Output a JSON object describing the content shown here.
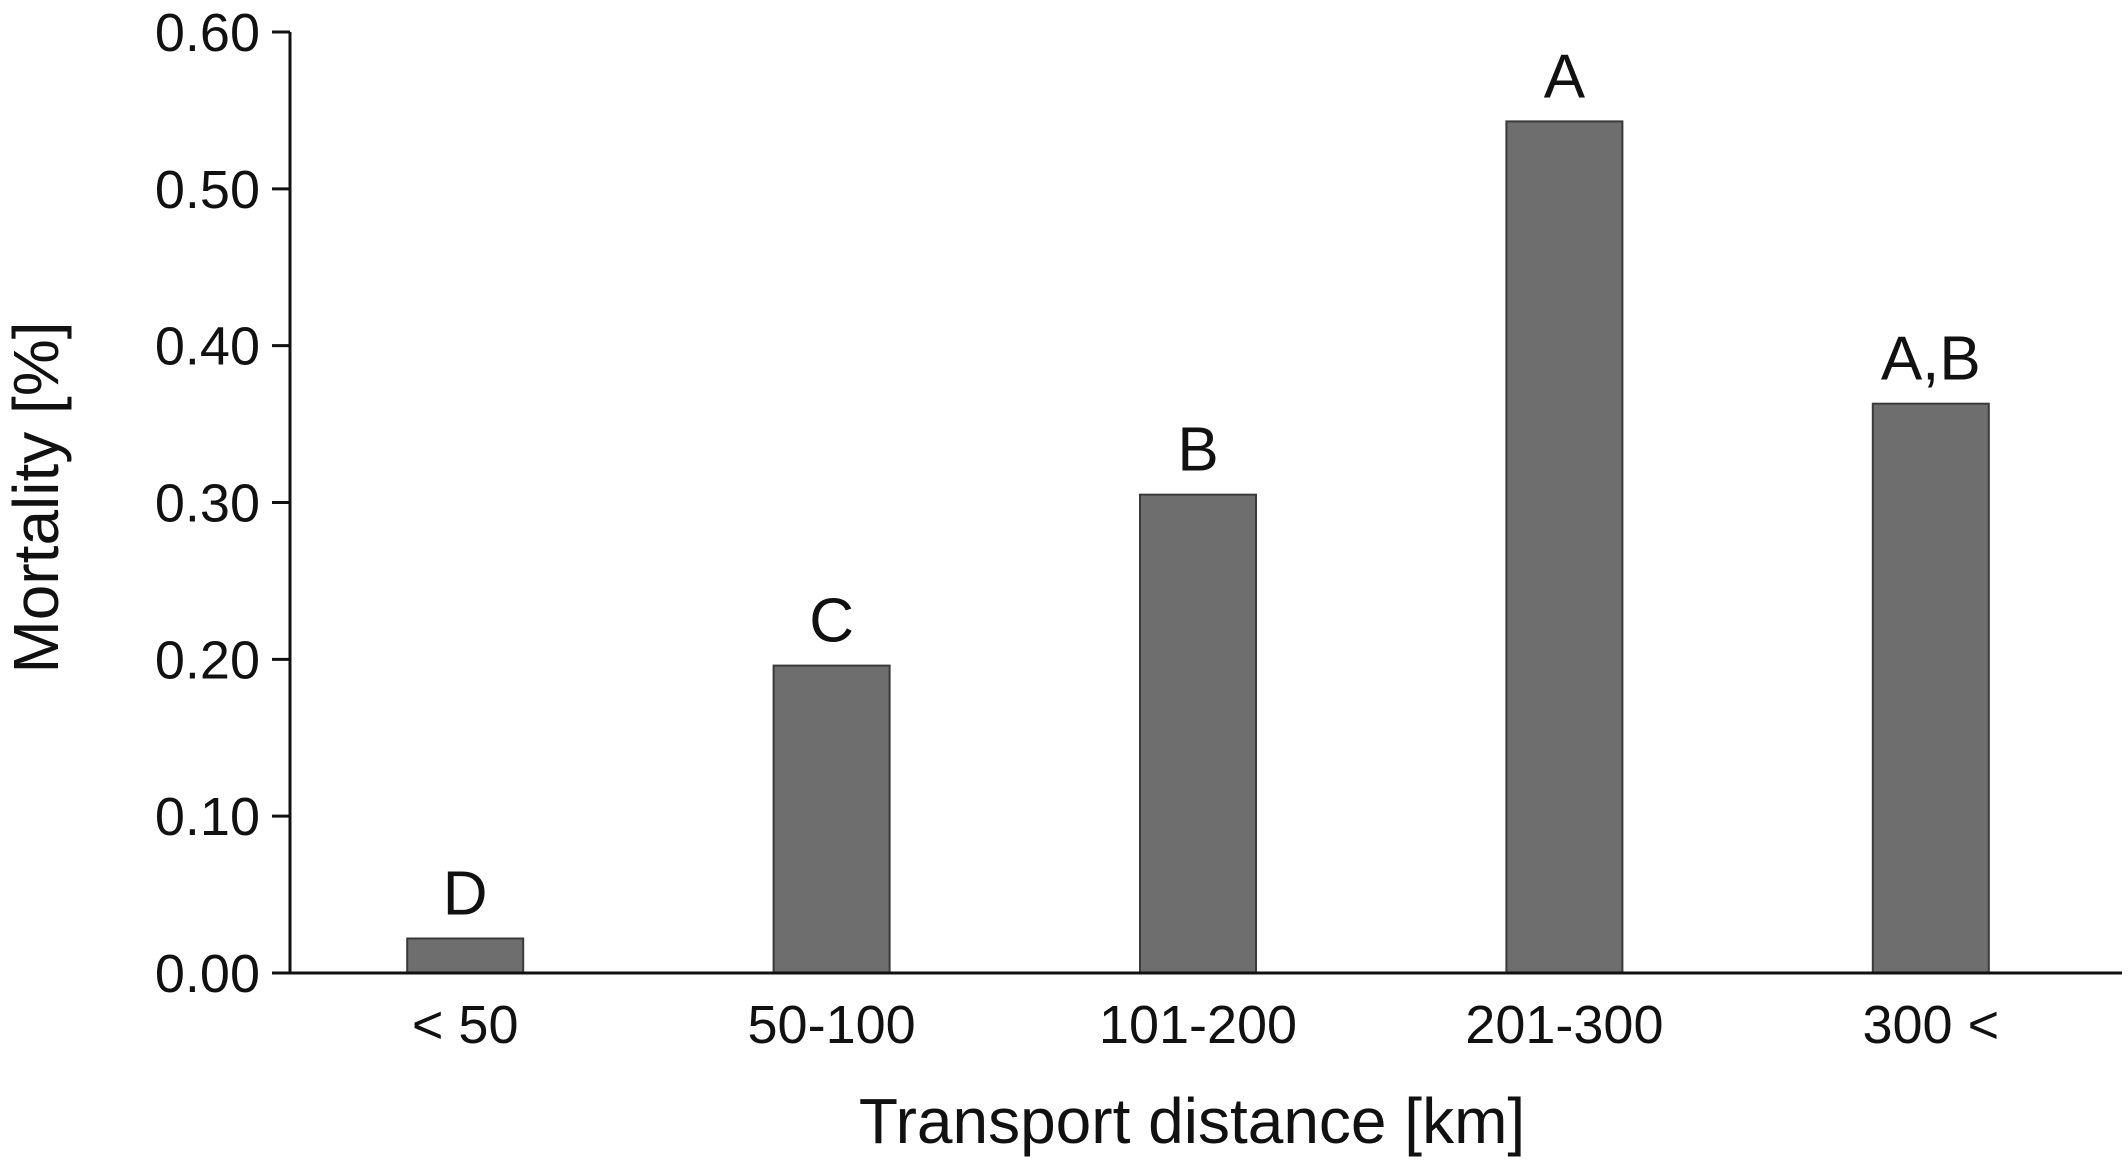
{
  "chart_data": {
    "type": "bar",
    "title": "",
    "xlabel": "Transport distance [km]",
    "ylabel": "Mortality [%]",
    "categories": [
      "< 50",
      "50-100",
      "101-200",
      "201-300",
      "300 <"
    ],
    "values": [
      0.022,
      0.196,
      0.305,
      0.543,
      0.363
    ],
    "data_labels": [
      "D",
      "C",
      "B",
      "A",
      "A,B"
    ],
    "ylim": [
      0,
      0.6
    ],
    "yticks": [
      0.0,
      0.1,
      0.2,
      0.3,
      0.4,
      0.5,
      0.6
    ],
    "ytick_labels": [
      "0.00",
      "0.10",
      "0.20",
      "0.30",
      "0.40",
      "0.50",
      "0.60"
    ],
    "grid": false,
    "legend": "none",
    "bar_color": "#6e6e6e",
    "bar_edge_color": "#3a3a3a",
    "axis_color": "#111111"
  }
}
